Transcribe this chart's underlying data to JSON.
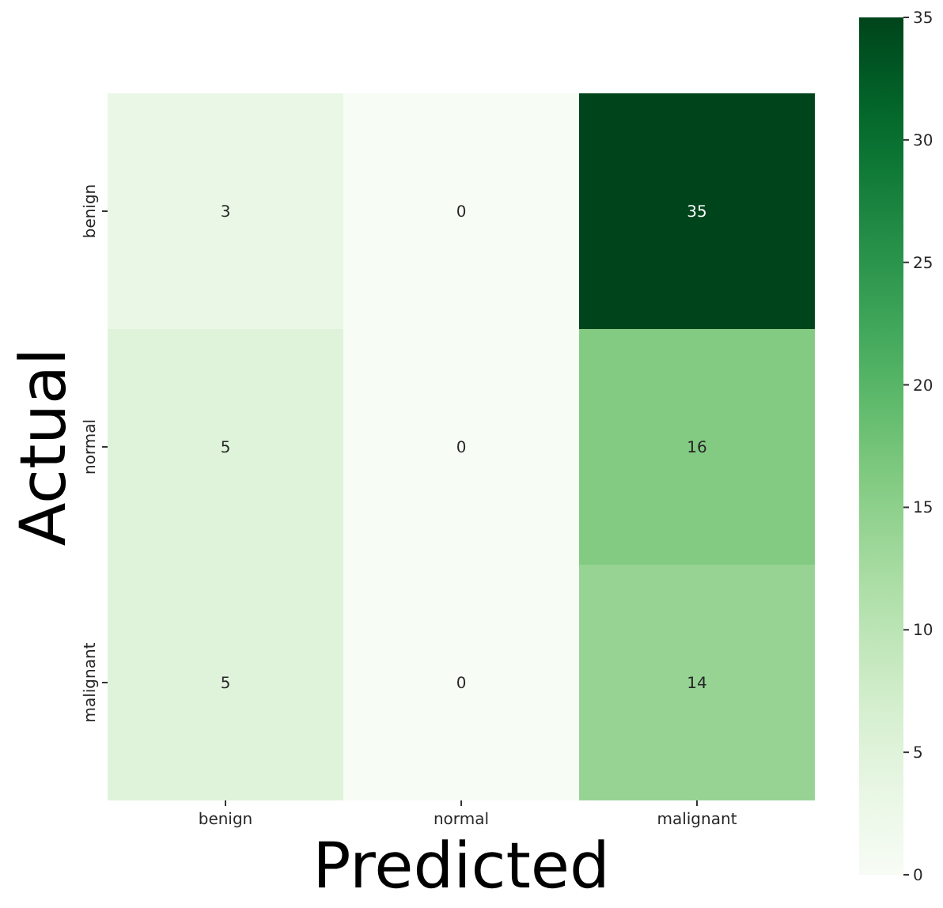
{
  "chart_data": {
    "type": "heatmap",
    "xlabel": "Predicted",
    "ylabel": "Actual",
    "categories": [
      "benign",
      "normal",
      "malignant"
    ],
    "y_categories": [
      "benign",
      "normal",
      "malignant"
    ],
    "cells": [
      [
        3,
        0,
        35
      ],
      [
        5,
        0,
        16
      ],
      [
        5,
        0,
        14
      ]
    ],
    "data_labels": true,
    "clim": [
      0,
      35
    ],
    "cticks": [
      0,
      5,
      10,
      15,
      20,
      25,
      30,
      35
    ]
  }
}
